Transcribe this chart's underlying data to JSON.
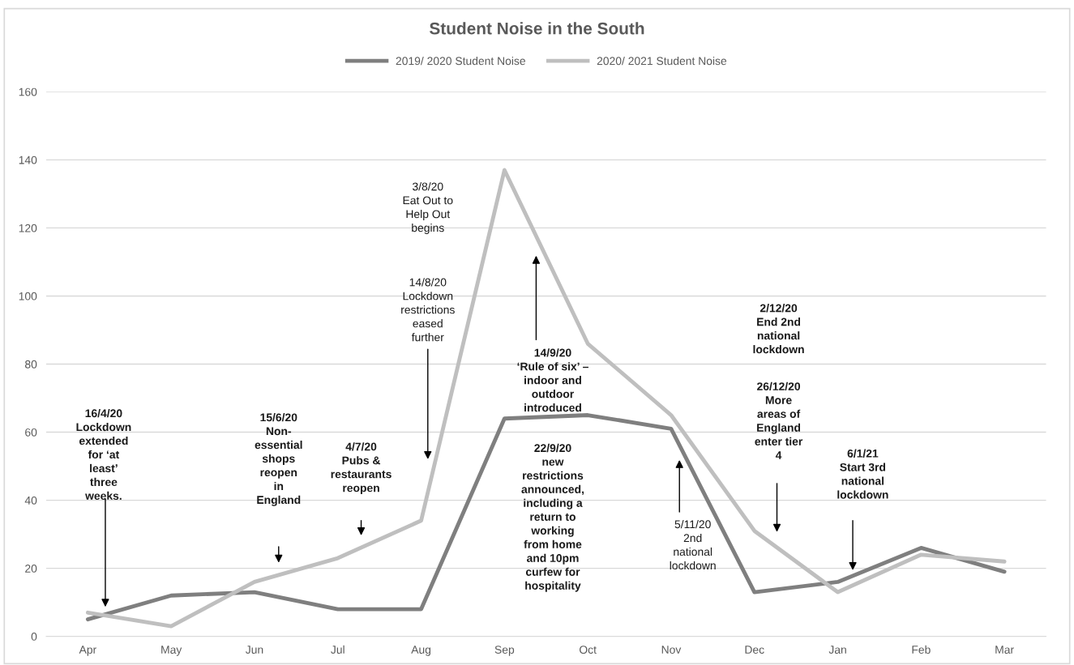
{
  "chart_data": {
    "type": "line",
    "title": "Student Noise in the South",
    "categories": [
      "Apr",
      "May",
      "Jun",
      "Jul",
      "Aug",
      "Sep",
      "Oct",
      "Nov",
      "Dec",
      "Jan",
      "Feb",
      "Mar"
    ],
    "series": [
      {
        "name": "2019/ 2020 Student Noise",
        "color": "#7f7f7f",
        "values": [
          5,
          12,
          13,
          8,
          8,
          64,
          65,
          61,
          13,
          16,
          26,
          19
        ]
      },
      {
        "name": "2020/ 2021 Student Noise",
        "color": "#bfbfbf",
        "values": [
          7,
          3,
          16,
          23,
          34,
          137,
          86,
          65,
          31,
          13,
          24,
          22
        ]
      }
    ],
    "ylim": [
      0,
      160
    ],
    "yticks": [
      0,
      20,
      40,
      60,
      80,
      100,
      120,
      140,
      160
    ],
    "grid": "y",
    "legend": "top",
    "marker": "none",
    "line_style": "solid",
    "annotations": [
      "16/4/20\nLockdown\nextended\nfor ‘at\nleast’\nthree\nweeks.",
      "15/6/20\nNon-\nessential\nshops\nreopen\nin\nEngland",
      "4/7/20\nPubs &\nrestaurants\nreopen",
      "3/8/20\nEat Out to\nHelp Out\nbegins",
      "14/8/20\nLockdown\nrestrictions\neased\nfurther",
      "14/9/20\n‘Rule of six’ –\nindoor and\noutdoor\nintroduced",
      "22/9/20\nnew\nrestrictions\nannounced,\nincluding a\nreturn to\nworking\nfrom home\nand 10pm\ncurfew for\nhospitality",
      "5/11/20\n2nd\nnational\nlockdown",
      "2/12/20\nEnd 2nd\nnational\nlockdown",
      "26/12/20\nMore\nareas of\nEngland\nenter tier\n4",
      "6/1/21\nStart 3rd\nnational\nlockdown"
    ]
  }
}
